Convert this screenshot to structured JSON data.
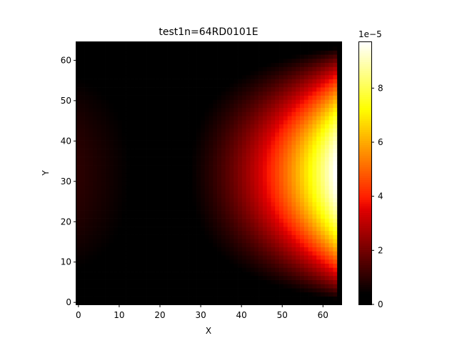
{
  "chart_data": {
    "type": "heatmap",
    "title": "test1n=64RD0101E",
    "xlabel": "X",
    "ylabel": "Y",
    "xlim": [
      -0.5,
      64.5
    ],
    "ylim": [
      -0.5,
      64.5
    ],
    "grid": false,
    "nx": 64,
    "ny": 64,
    "colormap": "hot",
    "colorbar": {
      "min": 0,
      "max": 9.7e-05,
      "offset_label": "1e−5",
      "ticks": [
        {
          "value": 0,
          "label": "0"
        },
        {
          "value": 2e-05,
          "label": "2"
        },
        {
          "value": 4e-05,
          "label": "4"
        },
        {
          "value": 6e-05,
          "label": "6"
        },
        {
          "value": 8e-05,
          "label": "8"
        }
      ]
    },
    "x_ticks": [
      {
        "value": 0,
        "label": "0"
      },
      {
        "value": 10,
        "label": "10"
      },
      {
        "value": 20,
        "label": "20"
      },
      {
        "value": 30,
        "label": "30"
      },
      {
        "value": 40,
        "label": "40"
      },
      {
        "value": 50,
        "label": "50"
      },
      {
        "value": 60,
        "label": "60"
      }
    ],
    "y_ticks": [
      {
        "value": 0,
        "label": "0"
      },
      {
        "value": 10,
        "label": "10"
      },
      {
        "value": 20,
        "label": "20"
      },
      {
        "value": 30,
        "label": "30"
      },
      {
        "value": 40,
        "label": "40"
      },
      {
        "value": 50,
        "label": "50"
      },
      {
        "value": 60,
        "label": "60"
      }
    ],
    "field_description_values": {
      "min_column": 18,
      "left_boundary_value": 1e-05,
      "right_center_value": 9.7e-05
    }
  }
}
